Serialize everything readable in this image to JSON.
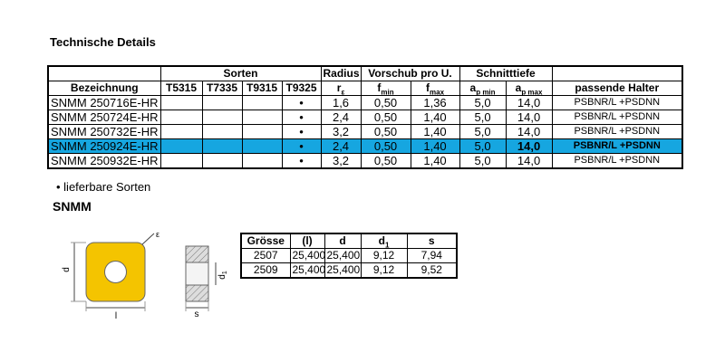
{
  "header": {
    "title": "Technische Details"
  },
  "table": {
    "group_headers": {
      "sorten": "Sorten",
      "radius": "Radius",
      "vorschub": "Vorschub pro U.",
      "schnitttiefe": "Schnitttiefe"
    },
    "columns": [
      {
        "text": "Bezeichnung"
      },
      {
        "text": "T5315"
      },
      {
        "text": "T7335"
      },
      {
        "text": "T9315"
      },
      {
        "text": "T9325"
      },
      {
        "base": "r",
        "sub": "ε"
      },
      {
        "base": "f",
        "sub": "min"
      },
      {
        "base": "f",
        "sub": "max"
      },
      {
        "base": "a",
        "sub": "p min"
      },
      {
        "base": "a",
        "sub": "p max"
      },
      {
        "text": "passende Halter"
      }
    ],
    "rows": [
      [
        "SNMM 250716E-HR",
        null,
        null,
        null,
        "•",
        "1,6",
        "0,50",
        "1,36",
        "5,0",
        "14,0",
        "PSBNR/L +PSDNN"
      ],
      [
        "SNMM 250724E-HR",
        null,
        null,
        null,
        "•",
        "2,4",
        "0,50",
        "1,40",
        "5,0",
        "14,0",
        "PSBNR/L +PSDNN"
      ],
      [
        "SNMM 250732E-HR",
        null,
        null,
        null,
        "•",
        "3,2",
        "0,50",
        "1,40",
        "5,0",
        "14,0",
        "PSBNR/L +PSDNN"
      ],
      [
        "SNMM 250924E-HR",
        null,
        null,
        null,
        "•",
        "2,4",
        "0,50",
        "1,40",
        "5,0",
        "14,0",
        "PSBNR/L +PSDNN"
      ],
      [
        "SNMM 250932E-HR",
        null,
        null,
        null,
        "•",
        "3,2",
        "0,50",
        "1,40",
        "5,0",
        "14,0",
        "PSBNR/L +PSDNN"
      ]
    ],
    "highlighted_row": 3
  },
  "note": "• lieferbare Sorten",
  "section": "SNMM",
  "drawing": {
    "labels": {
      "epsilon": "ε",
      "d": "d",
      "l": "l",
      "d1": {
        "base": "d",
        "sub": "1"
      },
      "s": "s"
    }
  },
  "size_table": {
    "columns": [
      {
        "text": "Grösse"
      },
      {
        "text": "(l)"
      },
      {
        "text": "d"
      },
      {
        "base": "d",
        "sub": "1"
      },
      {
        "text": "s"
      }
    ],
    "rows": [
      [
        "2507",
        "25,400",
        "25,400",
        "9,12",
        "7,94"
      ],
      [
        "2509",
        "25,400",
        "25,400",
        "9,12",
        "9,52"
      ]
    ]
  }
}
